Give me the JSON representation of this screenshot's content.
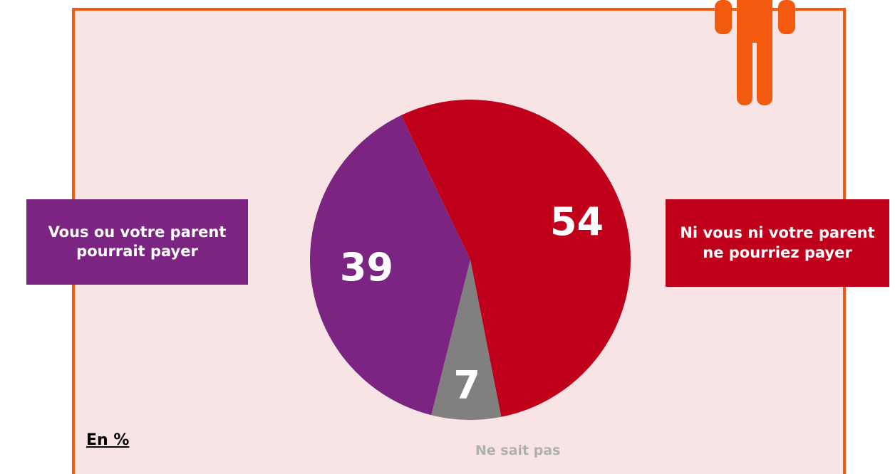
{
  "chart_data": {
    "type": "pie",
    "categories": [
      "Ni vous ni votre parent ne pourriez payer",
      "Ne sait pas",
      "Vous ou votre parent pourrait payer"
    ],
    "values": [
      54,
      7,
      39
    ],
    "colors": [
      "#c0001a",
      "#808080",
      "#7b2482"
    ],
    "annotation": "En %"
  }
}
